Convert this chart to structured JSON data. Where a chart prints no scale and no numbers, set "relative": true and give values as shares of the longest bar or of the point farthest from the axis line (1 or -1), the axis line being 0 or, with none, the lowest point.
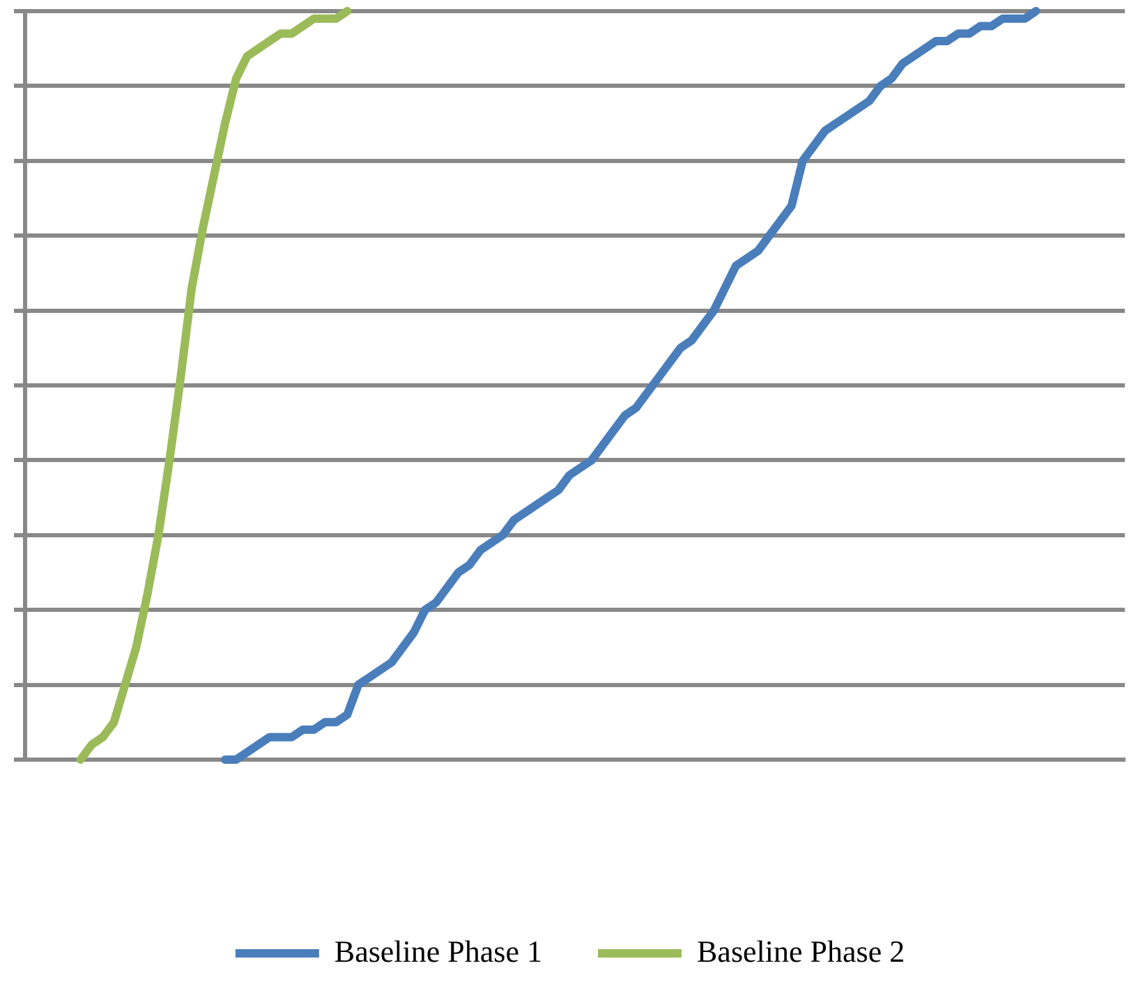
{
  "chart_data": {
    "type": "line",
    "relative": true,
    "grid": "y",
    "legend": "bottom",
    "marker": "none",
    "line_style": "solid",
    "categories": [
      null,
      null,
      null,
      null,
      null,
      null,
      null,
      null,
      null,
      null,
      null,
      null,
      null,
      null,
      null,
      null,
      null,
      null,
      null,
      null,
      null,
      null,
      null,
      null,
      null,
      null,
      null,
      null,
      null,
      null,
      null,
      null,
      null,
      null,
      null,
      null,
      null,
      null,
      null,
      null,
      null,
      null,
      null,
      null,
      null,
      null,
      null,
      null,
      null,
      null,
      null,
      null,
      null,
      null,
      null,
      null,
      null,
      null,
      null,
      null,
      null,
      null,
      null,
      null,
      null,
      null,
      null,
      null,
      null,
      null,
      null,
      null,
      null,
      null,
      null,
      null,
      null,
      null,
      null,
      null,
      null,
      null,
      null,
      null,
      null,
      null,
      null,
      null,
      null,
      null,
      null,
      null,
      null,
      null,
      null,
      null,
      null,
      null,
      null,
      null
    ],
    "series": [
      {
        "name": "Baseline Phase 1",
        "color": "#4a7ebb",
        "values": [
          null,
          null,
          null,
          null,
          null,
          null,
          null,
          null,
          null,
          null,
          null,
          null,
          null,
          null,
          null,
          null,
          null,
          null,
          0,
          0.0,
          0.01,
          0.02,
          0.03,
          0.03,
          0.03,
          0.04,
          0.04,
          0.05,
          0.05,
          0.06,
          0.1,
          0.11,
          0.12,
          0.13,
          0.15,
          0.17,
          0.2,
          0.21,
          0.23,
          0.25,
          0.26,
          0.28,
          0.29,
          0.3,
          0.32,
          0.33,
          0.34,
          0.35,
          0.36,
          0.38,
          0.39,
          0.4,
          0.42,
          0.44,
          0.46,
          0.47,
          0.49,
          0.51,
          0.53,
          0.55,
          0.56,
          0.58,
          0.6,
          0.63,
          0.66,
          0.67,
          0.68,
          0.7,
          0.72,
          0.74,
          0.8,
          0.82,
          0.84,
          0.85,
          0.86,
          0.87,
          0.88,
          0.9,
          0.91,
          0.93,
          0.94,
          0.95,
          0.96,
          0.96,
          0.97,
          0.97,
          0.98,
          0.98,
          0.99,
          0.99,
          0.99,
          1,
          null,
          null,
          null,
          null,
          null,
          null,
          null,
          null
        ]
      },
      {
        "name": "Baseline Phase 2",
        "color": "#9bbb59",
        "values": [
          null,
          null,
          null,
          null,
          null,
          0,
          0.02,
          0.03,
          0.05,
          0.1,
          0.15,
          0.22,
          0.3,
          0.4,
          0.51,
          0.63,
          0.71,
          0.78,
          0.85,
          0.91,
          0.94,
          0.95,
          0.96,
          0.97,
          0.97,
          0.98,
          0.99,
          0.99,
          0.99,
          1,
          null,
          null,
          null,
          null,
          null,
          null,
          null,
          null,
          null,
          null,
          null,
          null,
          null,
          null,
          null,
          null,
          null,
          null,
          null,
          null,
          null,
          null,
          null,
          null,
          null,
          null,
          null,
          null,
          null,
          null,
          null,
          null,
          null,
          null,
          null,
          null,
          null,
          null,
          null,
          null,
          null,
          null,
          null,
          null,
          null,
          null,
          null,
          null,
          null,
          null,
          null,
          null,
          null,
          null,
          null,
          null,
          null,
          null,
          null,
          null,
          null,
          null,
          null,
          null,
          null,
          null,
          null,
          null,
          null,
          null
        ]
      }
    ]
  }
}
